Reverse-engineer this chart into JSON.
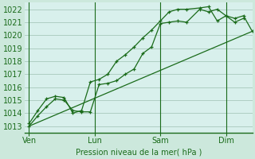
{
  "background_color": "#cce8dc",
  "plot_bg_color": "#d8f0ec",
  "grid_color": "#a8c8bc",
  "line_color": "#1a6b1a",
  "ylabel_text": "Pression niveau de la mer( hPa )",
  "ylim": [
    1012.5,
    1022.5
  ],
  "yticks": [
    1013,
    1014,
    1015,
    1016,
    1017,
    1018,
    1019,
    1020,
    1021,
    1022
  ],
  "xtick_labels": [
    "Ven",
    "Lun",
    "Sam",
    "Dim"
  ],
  "xtick_positions": [
    0,
    30,
    60,
    90
  ],
  "xlim": [
    -2,
    102
  ],
  "series1_x": [
    0,
    4,
    8,
    12,
    16,
    20,
    24,
    28,
    32,
    36,
    40,
    44,
    48,
    52,
    56,
    60,
    64,
    68,
    72,
    78,
    82,
    86,
    90,
    94,
    98
  ],
  "series1_y": [
    1013.0,
    1013.8,
    1014.5,
    1015.1,
    1015.0,
    1014.2,
    1014.1,
    1014.1,
    1016.2,
    1016.3,
    1016.5,
    1017.0,
    1017.4,
    1018.6,
    1019.1,
    1020.9,
    1021.0,
    1021.1,
    1021.0,
    1022.0,
    1021.8,
    1022.0,
    1021.5,
    1021.0,
    1021.3
  ],
  "series2_x": [
    0,
    4,
    8,
    12,
    16,
    20,
    24,
    28,
    32,
    36,
    40,
    44,
    48,
    52,
    56,
    60,
    64,
    68,
    72,
    78,
    82,
    86,
    90,
    94,
    98,
    102
  ],
  "series2_y": [
    1013.2,
    1014.2,
    1015.1,
    1015.3,
    1015.2,
    1014.0,
    1014.2,
    1016.4,
    1016.6,
    1017.0,
    1018.0,
    1018.5,
    1019.1,
    1019.8,
    1020.4,
    1021.1,
    1021.8,
    1022.0,
    1022.0,
    1022.1,
    1022.2,
    1021.1,
    1021.5,
    1021.3,
    1021.5,
    1020.3
  ],
  "series3_x": [
    0,
    102
  ],
  "series3_y": [
    1013.0,
    1020.3
  ]
}
